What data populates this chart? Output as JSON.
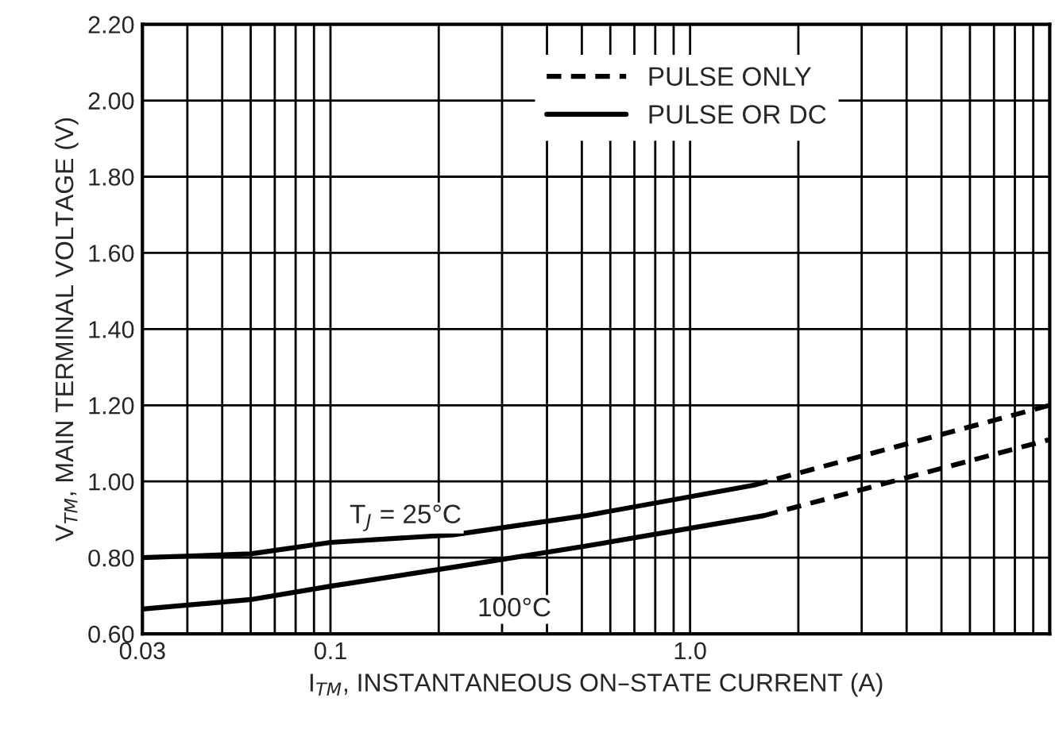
{
  "chart_data": {
    "type": "line",
    "xlabel": "I$_{TM}$, INSTANTANEOUS ON–STATE CURRENT (A)",
    "ylabel": "V$_{TM}$, MAIN TERMINAL VOLTAGE (V)",
    "log": "x",
    "xlim": [
      0.03,
      10
    ],
    "xticks": [
      0.03,
      0.1,
      {
        "value": 1,
        "label": "1.0"
      }
    ],
    "ylim": [
      0.6,
      2.2
    ],
    "yticks": [
      {
        "value": 0.6,
        "label": "0.60"
      },
      {
        "value": 0.8,
        "label": "0.80"
      },
      {
        "value": 1.0,
        "label": "1.00"
      },
      {
        "value": 1.2,
        "label": "1.20"
      },
      {
        "value": 1.4,
        "label": "1.40"
      },
      {
        "value": 1.6,
        "label": "1.60"
      },
      {
        "value": 1.8,
        "label": "1.80"
      },
      {
        "value": 2.0,
        "label": "2.00"
      },
      {
        "value": 2.2,
        "label": "2.20"
      }
    ],
    "grid": true,
    "legend": "top",
    "marker": "none",
    "series": [
      {
        "name": "PULSE ONLY",
        "color": "#000000",
        "line_style": "dashed",
        "x": [
          1.5,
          10
        ],
        "values": [
          0.99,
          1.2
        ]
      },
      {
        "name": "PULSE OR DC",
        "color": "#000000",
        "line_style": "solid",
        "x": [
          0.03,
          0.06,
          0.1,
          0.22,
          0.51,
          1.5
        ],
        "values": [
          0.8,
          0.81,
          0.84,
          0.86,
          0.91,
          0.99
        ]
      },
      {
        "color": "#000000",
        "line_style": "solid",
        "x": [
          0.03,
          0.06,
          0.1,
          0.22,
          0.51,
          1.6
        ],
        "values": [
          0.665,
          0.69,
          0.725,
          0.775,
          0.83,
          0.91
        ]
      },
      {
        "color": "#000000",
        "line_style": "dashed",
        "x": [
          1.6,
          10
        ],
        "values": [
          0.91,
          1.11
        ]
      }
    ],
    "annotations": [
      "T$_{J}$ = 25°C",
      "100°C"
    ]
  }
}
